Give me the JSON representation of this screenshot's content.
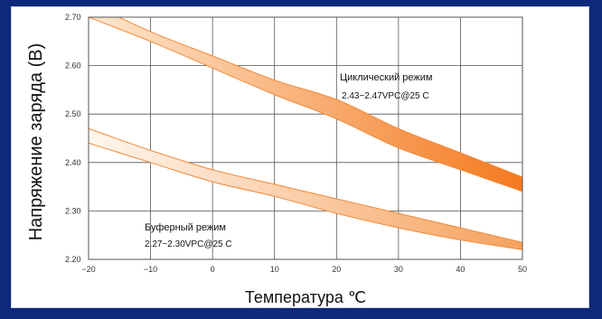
{
  "chart_data": {
    "type": "area",
    "xlabel": "Температура ℃",
    "ylabel": "Напряжение заряда (B)",
    "xlim": [
      -20,
      50
    ],
    "ylim": [
      2.2,
      2.7
    ],
    "x_ticks": [
      "−20",
      "−10",
      "0",
      "10",
      "20",
      "30",
      "40",
      "50"
    ],
    "y_ticks": [
      "2.20",
      "2.30",
      "2.40",
      "2.50",
      "2.60",
      "2.70"
    ],
    "grid": true,
    "bands": [
      {
        "label": "Циклический режим",
        "spec": "2.43~2.47VPC@25 C",
        "x": [
          -20,
          -10,
          0,
          10,
          20,
          30,
          40,
          50
        ],
        "upper": [
          2.73,
          2.67,
          2.62,
          2.57,
          2.53,
          2.47,
          2.42,
          2.37
        ],
        "lower": [
          2.7,
          2.65,
          2.595,
          2.54,
          2.49,
          2.43,
          2.385,
          2.34
        ],
        "color_light": "#fde0c2",
        "color_dark": "#f47a1f"
      },
      {
        "label": "Буферный режим",
        "spec": "2.27~2.30VPC@25 C",
        "x": [
          -20,
          -10,
          0,
          10,
          20,
          30,
          40,
          50
        ],
        "upper": [
          2.47,
          2.425,
          2.385,
          2.355,
          2.325,
          2.295,
          2.265,
          2.235
        ],
        "lower": [
          2.44,
          2.4,
          2.36,
          2.33,
          2.295,
          2.265,
          2.24,
          2.22
        ],
        "color_light": "#fef2e6",
        "color_dark": "#f47a1f"
      }
    ],
    "annotations": {
      "cyclic_label": "Циклический режим",
      "cyclic_spec": "2.43~2.47VPC@25 C",
      "buffer_label": "Буферный режим",
      "buffer_spec": "2.27~2.30VPC@25 C"
    }
  }
}
